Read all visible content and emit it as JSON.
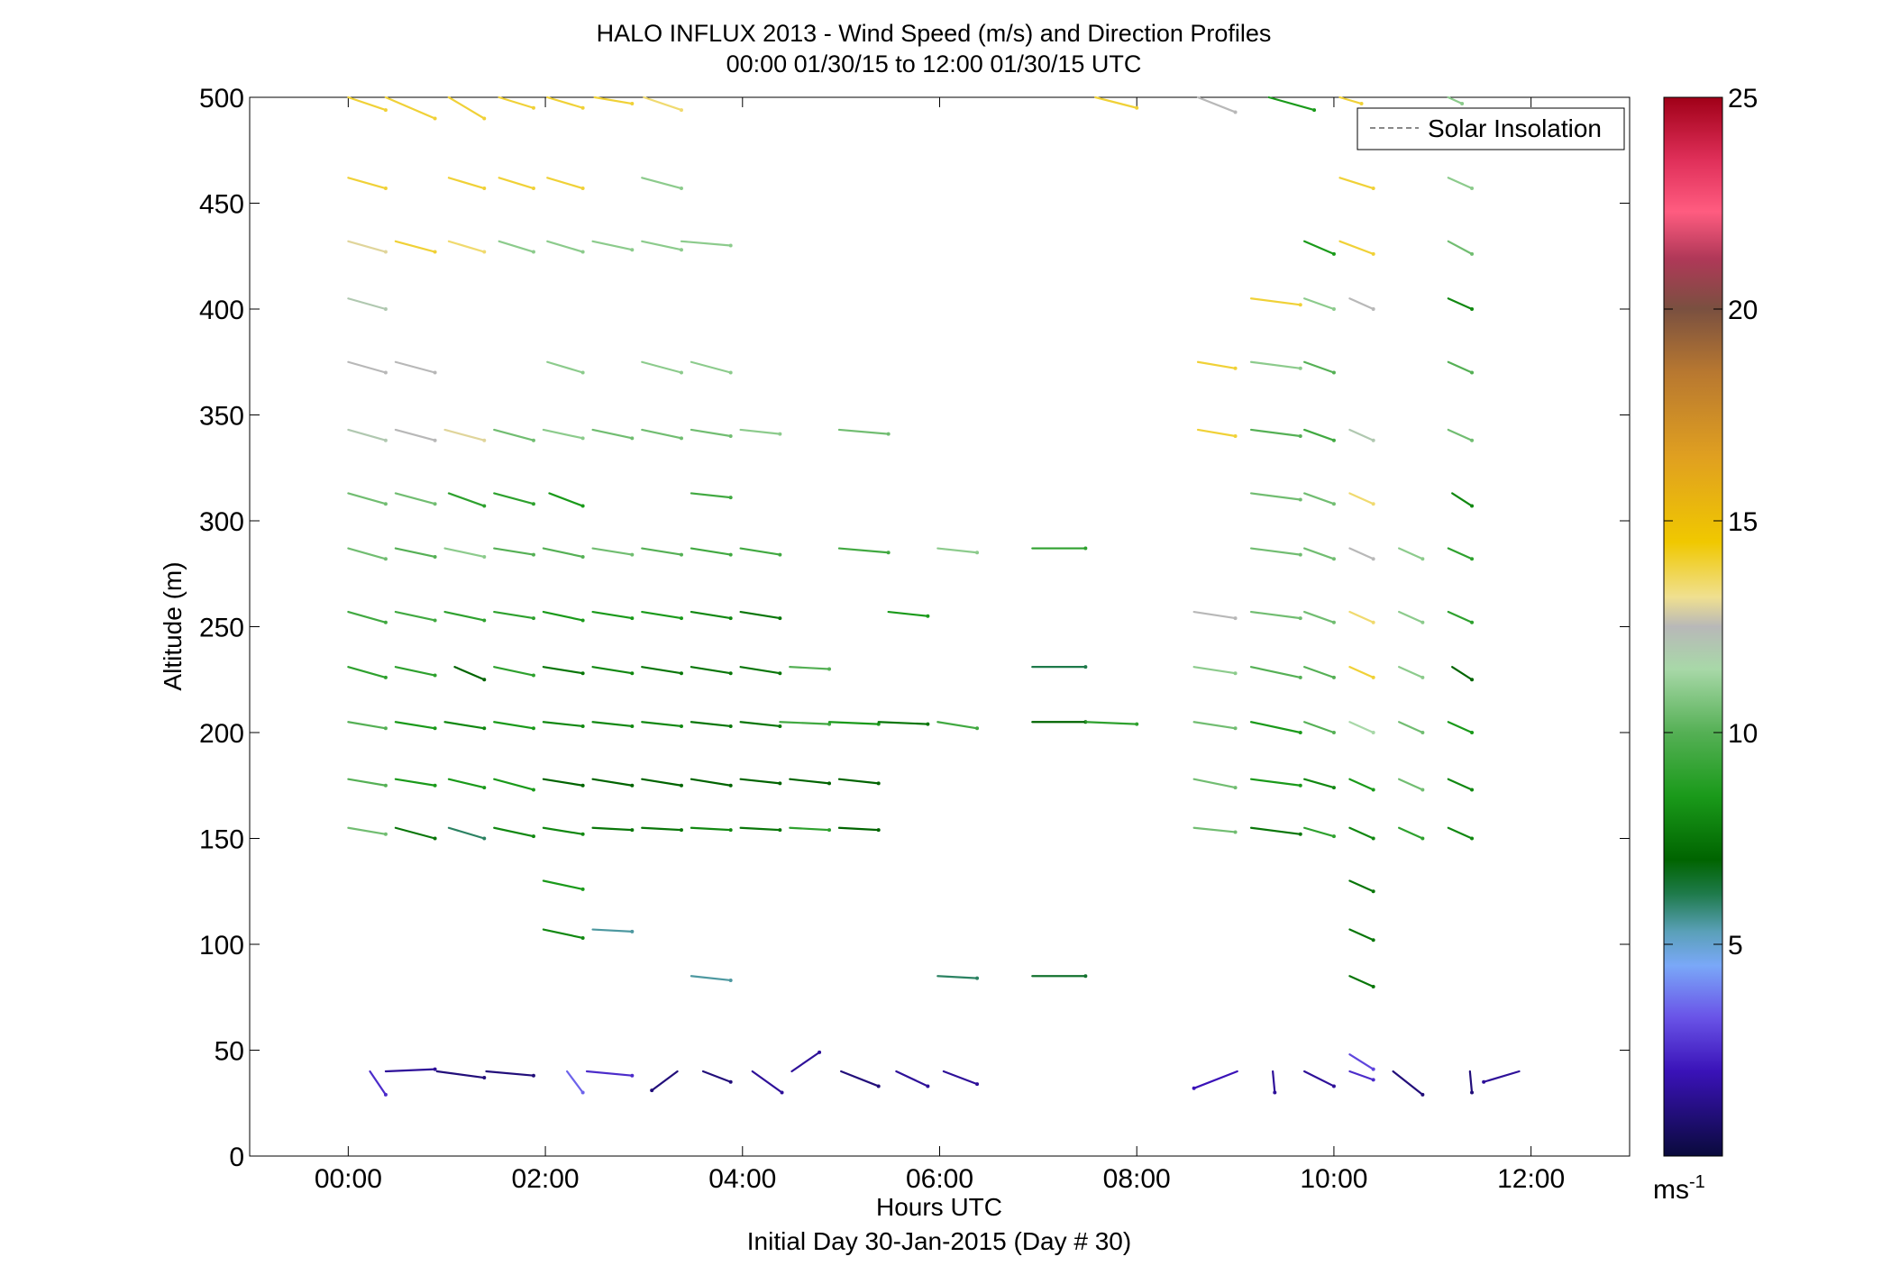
{
  "chart_data": {
    "type": "quiver",
    "title": "HALO INFLUX 2013 - Wind Speed (m/s) and Direction Profiles",
    "subtitle": "00:00 01/30/15 to 12:00 01/30/15  UTC",
    "xlabel": "Hours UTC",
    "xlabel2": "Initial Day 30-Jan-2015 (Day # 30)",
    "ylabel": "Altitude (m)",
    "xlim": [
      -1,
      13
    ],
    "ylim": [
      0,
      500
    ],
    "xticks": [
      {
        "value": 0,
        "label": "00:00"
      },
      {
        "value": 2,
        "label": "02:00"
      },
      {
        "value": 4,
        "label": "04:00"
      },
      {
        "value": 6,
        "label": "06:00"
      },
      {
        "value": 8,
        "label": "08:00"
      },
      {
        "value": 10,
        "label": "10:00"
      },
      {
        "value": 12,
        "label": "12:00"
      }
    ],
    "yticks": [
      0,
      50,
      100,
      150,
      200,
      250,
      300,
      350,
      400,
      450,
      500
    ],
    "legend": {
      "label": "Solar Insolation",
      "placement": "top-right",
      "line_color": "#888888",
      "line_style": "dashed"
    },
    "colorbar": {
      "range": [
        0,
        25
      ],
      "ticks": [
        5,
        10,
        15,
        20,
        25
      ],
      "unit_label": "ms",
      "unit_exponent": "-1",
      "colormap": [
        {
          "v": 0,
          "c": "#0a0a3c"
        },
        {
          "v": 2,
          "c": "#3a12b8"
        },
        {
          "v": 3.3,
          "c": "#6a55e8"
        },
        {
          "v": 4.5,
          "c": "#7aa8f8"
        },
        {
          "v": 5.3,
          "c": "#5aa0b8"
        },
        {
          "v": 6.2,
          "c": "#1e7a4a"
        },
        {
          "v": 7,
          "c": "#006400"
        },
        {
          "v": 8.5,
          "c": "#1a9a1a"
        },
        {
          "v": 10,
          "c": "#55b055"
        },
        {
          "v": 11.5,
          "c": "#a8d8a8"
        },
        {
          "v": 12.5,
          "c": "#b8b8b8"
        },
        {
          "v": 13.2,
          "c": "#f0e090"
        },
        {
          "v": 14.5,
          "c": "#f0c800"
        },
        {
          "v": 16.5,
          "c": "#e0a020"
        },
        {
          "v": 18.5,
          "c": "#b87830"
        },
        {
          "v": 20,
          "c": "#7a5040"
        },
        {
          "v": 21.2,
          "c": "#b03858"
        },
        {
          "v": 22.3,
          "c": "#ff5c80"
        },
        {
          "v": 23.5,
          "c": "#e0305a"
        },
        {
          "v": 25,
          "c": "#a00018"
        }
      ]
    },
    "series": [
      {
        "y": 500,
        "start": [
          0,
          0.38,
          1.02,
          1.53,
          2.02,
          2.5,
          3.0,
          7.58,
          8.62,
          9.34
        ],
        "end": [
          0.38,
          0.88,
          1.38,
          1.88,
          2.38,
          2.88,
          3.38,
          8.0,
          9.0,
          9.8
        ],
        "dy": [
          -6,
          -10,
          -10,
          -5,
          -5,
          -3,
          -6,
          -5,
          -7,
          -6
        ],
        "speed": [
          14,
          14,
          14,
          14,
          14,
          14,
          13.5,
          14,
          12.5,
          8.5
        ]
      },
      {
        "y": 500,
        "start": [
          10.06,
          11.16
        ],
        "end": [
          10.28,
          11.3
        ],
        "dy": [
          -3,
          -3
        ],
        "speed": [
          14,
          11
        ]
      },
      {
        "y": 462,
        "start": [
          0,
          1.02,
          1.53,
          2.02,
          2.98,
          10.06,
          11.16
        ],
        "end": [
          0.38,
          1.38,
          1.88,
          2.38,
          3.38,
          10.4,
          11.4
        ],
        "dy": [
          -5,
          -5,
          -5,
          -5,
          -5,
          -5,
          -5
        ],
        "speed": [
          14,
          14,
          14,
          14,
          11,
          14,
          11
        ]
      },
      {
        "y": 432,
        "start": [
          0,
          0.48,
          1.02,
          1.53,
          2.02,
          2.48,
          2.98,
          3.38,
          9.7,
          10.06,
          11.16
        ],
        "end": [
          0.38,
          0.88,
          1.38,
          1.88,
          2.38,
          2.88,
          3.38,
          3.88,
          10.0,
          10.4,
          11.4
        ],
        "dy": [
          -5,
          -5,
          -5,
          -5,
          -5,
          -4,
          -4,
          -2,
          -6,
          -6,
          -6
        ],
        "speed": [
          13,
          14,
          13.5,
          11,
          11,
          11,
          11,
          11,
          8.5,
          14,
          10.5
        ]
      },
      {
        "y": 405,
        "start": [
          0,
          9.16,
          9.7,
          10.16,
          11.16
        ],
        "end": [
          0.38,
          9.66,
          10.0,
          10.4,
          11.4
        ],
        "dy": [
          -5,
          -3,
          -5,
          -5,
          -5
        ],
        "speed": [
          12,
          14,
          11,
          12.5,
          8
        ]
      },
      {
        "y": 375,
        "start": [
          0,
          0.48,
          2.02,
          2.98,
          3.48,
          8.62,
          9.16,
          9.7,
          11.16
        ],
        "end": [
          0.38,
          0.88,
          2.38,
          3.38,
          3.88,
          9.0,
          9.66,
          10.0,
          11.4
        ],
        "dy": [
          -5,
          -5,
          -5,
          -5,
          -5,
          -3,
          -3,
          -5,
          -5
        ],
        "speed": [
          12.5,
          12.5,
          11,
          11,
          11,
          14,
          11,
          10,
          10
        ]
      },
      {
        "y": 343,
        "start": [
          0,
          0.48,
          0.98,
          1.48,
          1.98,
          2.48,
          2.98,
          3.48,
          3.98,
          4.98,
          8.62,
          9.16,
          9.7,
          10.16,
          11.16
        ],
        "end": [
          0.38,
          0.88,
          1.38,
          1.88,
          2.38,
          2.88,
          3.38,
          3.88,
          4.38,
          5.48,
          9.0,
          9.66,
          10.0,
          10.4,
          11.4
        ],
        "dy": [
          -5,
          -5,
          -5,
          -5,
          -4,
          -4,
          -4,
          -3,
          -2,
          -2,
          -3,
          -3,
          -5,
          -5,
          -5
        ],
        "speed": [
          12,
          12.5,
          13,
          10.5,
          11,
          10.5,
          10.5,
          10.5,
          11,
          10.5,
          14,
          10,
          9.5,
          12,
          10.5
        ]
      },
      {
        "y": 313,
        "start": [
          0,
          0.48,
          1.02,
          1.48,
          2.04,
          3.48,
          9.16,
          9.7,
          10.16,
          11.2
        ],
        "end": [
          0.38,
          0.88,
          1.38,
          1.88,
          2.38,
          3.88,
          9.66,
          10.0,
          10.4,
          11.4
        ],
        "dy": [
          -5,
          -5,
          -6,
          -5,
          -6,
          -2,
          -3,
          -5,
          -5,
          -6
        ],
        "speed": [
          10.5,
          10.5,
          9,
          9,
          8.5,
          9.5,
          10.5,
          10.5,
          13.5,
          8
        ]
      },
      {
        "y": 287,
        "start": [
          0,
          0.48,
          0.98,
          1.48,
          1.98,
          2.48,
          2.98,
          3.48,
          3.98,
          4.98,
          5.98,
          6.94,
          9.16,
          9.7,
          10.16,
          10.66,
          11.16
        ],
        "end": [
          0.38,
          0.88,
          1.38,
          1.88,
          2.38,
          2.88,
          3.38,
          3.88,
          4.38,
          5.48,
          6.38,
          7.48,
          9.66,
          10.0,
          10.4,
          10.9,
          11.4
        ],
        "dy": [
          -5,
          -4,
          -4,
          -3,
          -4,
          -3,
          -3,
          -3,
          -3,
          -2,
          -2,
          0,
          -3,
          -5,
          -5,
          -5,
          -5
        ],
        "speed": [
          10.5,
          10,
          11,
          10,
          10,
          10.5,
          10,
          9.5,
          9.5,
          9.5,
          11,
          9,
          10.5,
          10.5,
          12.5,
          11,
          9
        ]
      },
      {
        "y": 257,
        "start": [
          0,
          0.48,
          0.98,
          1.48,
          1.98,
          2.48,
          2.98,
          3.48,
          3.98,
          5.48,
          8.58,
          9.16,
          9.7,
          10.16,
          10.66,
          11.16
        ],
        "end": [
          0.38,
          0.88,
          1.38,
          1.88,
          2.38,
          2.88,
          3.38,
          3.88,
          4.38,
          5.88,
          9.0,
          9.66,
          10.0,
          10.4,
          10.9,
          11.4
        ],
        "dy": [
          -5,
          -4,
          -4,
          -3,
          -4,
          -3,
          -3,
          -3,
          -3,
          -2,
          -3,
          -3,
          -5,
          -5,
          -5,
          -5
        ],
        "speed": [
          9.5,
          9.5,
          9,
          9,
          8.5,
          8.5,
          8.5,
          8,
          7.5,
          8.5,
          12.5,
          10.5,
          10.5,
          13.5,
          11,
          9
        ]
      },
      {
        "y": 231,
        "start": [
          0,
          0.48,
          1.08,
          1.48,
          1.98,
          2.48,
          2.98,
          3.48,
          3.98,
          4.48,
          6.94,
          8.58,
          9.16,
          9.7,
          10.16,
          10.66,
          11.2
        ],
        "end": [
          0.38,
          0.88,
          1.38,
          1.88,
          2.38,
          2.88,
          3.38,
          3.88,
          4.38,
          4.88,
          7.48,
          9.0,
          9.66,
          10.0,
          10.4,
          10.9,
          11.4
        ],
        "dy": [
          -5,
          -4,
          -6,
          -4,
          -3,
          -3,
          -3,
          -3,
          -3,
          -1,
          0,
          -3,
          -5,
          -5,
          -5,
          -5,
          -6
        ],
        "speed": [
          9,
          9,
          7,
          9,
          7.5,
          8,
          7.5,
          7.5,
          7.5,
          10,
          6.2,
          11,
          10,
          10,
          14,
          11,
          7
        ]
      },
      {
        "y": 205,
        "start": [
          0,
          0.48,
          0.98,
          1.48,
          1.98,
          2.48,
          2.98,
          3.48,
          3.98,
          4.38,
          4.88,
          5.38,
          5.98,
          6.94,
          7.48,
          8.58,
          9.16,
          9.7,
          10.16,
          10.66,
          11.16
        ],
        "end": [
          0.38,
          0.88,
          1.38,
          1.88,
          2.38,
          2.88,
          3.38,
          3.88,
          4.38,
          4.88,
          5.38,
          5.88,
          6.38,
          7.48,
          8.0,
          9.0,
          9.66,
          10.0,
          10.4,
          10.9,
          11.4
        ],
        "dy": [
          -3,
          -3,
          -3,
          -3,
          -2,
          -2,
          -2,
          -2,
          -2,
          -1,
          -1,
          -1,
          -3,
          0,
          -1,
          -3,
          -5,
          -5,
          -5,
          -5,
          -5
        ],
        "speed": [
          10,
          8.5,
          8,
          8.5,
          8,
          8,
          8,
          7.5,
          7.5,
          9.5,
          8.5,
          7.5,
          9.5,
          7,
          9,
          10.5,
          8.5,
          10,
          11.5,
          10.5,
          8.5
        ]
      },
      {
        "y": 178,
        "start": [
          0,
          0.48,
          1.02,
          1.48,
          1.98,
          2.48,
          2.98,
          3.48,
          3.98,
          4.48,
          4.98,
          8.58,
          9.16,
          9.7,
          10.16,
          10.66,
          11.16
        ],
        "end": [
          0.38,
          0.88,
          1.38,
          1.88,
          2.38,
          2.88,
          3.38,
          3.88,
          4.38,
          4.88,
          5.38,
          9.0,
          9.66,
          10.0,
          10.4,
          10.9,
          11.4
        ],
        "dy": [
          -3,
          -3,
          -4,
          -5,
          -3,
          -3,
          -3,
          -3,
          -2,
          -2,
          -2,
          -4,
          -3,
          -4,
          -5,
          -5,
          -5
        ],
        "speed": [
          10,
          8.5,
          8.5,
          8.5,
          7,
          7,
          7,
          7,
          7,
          7,
          7,
          10.5,
          8.5,
          8,
          8.5,
          10.5,
          8
        ]
      },
      {
        "y": 155,
        "start": [
          0,
          0.48,
          1.02,
          1.48,
          1.98,
          2.48,
          2.98,
          3.48,
          3.98,
          4.48,
          4.98,
          8.58,
          9.16,
          9.7,
          10.16,
          10.66,
          11.16
        ],
        "end": [
          0.38,
          0.88,
          1.38,
          1.88,
          2.38,
          2.88,
          3.38,
          3.88,
          4.38,
          4.88,
          5.38,
          9.0,
          9.66,
          10.0,
          10.4,
          10.9,
          11.4
        ],
        "dy": [
          -3,
          -5,
          -5,
          -4,
          -3,
          -1,
          -1,
          -1,
          -1,
          -1,
          -1,
          -2,
          -3,
          -4,
          -5,
          -5,
          -5
        ],
        "speed": [
          10.5,
          7.5,
          6,
          8,
          8,
          7.5,
          7.5,
          8,
          7.5,
          9,
          7,
          10.5,
          7.5,
          9,
          8,
          9,
          8
        ]
      },
      {
        "y": 130,
        "start": [
          1.98,
          10.16
        ],
        "end": [
          2.38,
          10.4
        ],
        "dy": [
          -4,
          -5
        ],
        "speed": [
          8.5,
          7.5
        ]
      },
      {
        "y": 107,
        "start": [
          1.98,
          2.48,
          10.16
        ],
        "end": [
          2.38,
          2.88,
          10.4
        ],
        "dy": [
          -4,
          -1,
          -5
        ],
        "speed": [
          8,
          5.5,
          7.5
        ]
      },
      {
        "y": 85,
        "start": [
          3.48,
          5.98,
          6.94,
          10.16
        ],
        "end": [
          3.88,
          6.38,
          7.48,
          10.4
        ],
        "dy": [
          -2,
          -1,
          0,
          -5
        ],
        "speed": [
          5.5,
          6,
          6.5,
          7.5
        ]
      },
      {
        "y": 40,
        "start": [
          0.22,
          0.38,
          0.9,
          1.4,
          2.22,
          2.42,
          3.34,
          3.6,
          4.1,
          4.5,
          5.0,
          5.56,
          6.04,
          9.02,
          9.38,
          9.7,
          10.16,
          10.6,
          11.38,
          11.88
        ],
        "end": [
          0.38,
          0.88,
          1.38,
          1.88,
          2.38,
          2.88,
          3.08,
          3.88,
          4.4,
          4.78,
          5.38,
          5.88,
          6.38,
          8.58,
          9.4,
          10.0,
          10.4,
          10.9,
          11.4,
          11.52
        ],
        "dy": [
          -11,
          1,
          -3,
          -2,
          -10,
          -2,
          -9,
          -5,
          -10,
          9,
          -7,
          -7,
          -6,
          -8,
          -10,
          -7,
          -4,
          -11,
          -10,
          -5
        ],
        "speed": [
          2.5,
          1.5,
          1,
          1,
          3.5,
          2.5,
          1,
          1,
          1.5,
          1.5,
          1,
          1.5,
          1.5,
          2,
          1.5,
          1.5,
          2.5,
          1,
          1,
          1.5
        ]
      },
      {
        "y": 48,
        "start": [
          10.16
        ],
        "end": [
          10.4
        ],
        "dy": [
          -7
        ],
        "speed": [
          3
        ]
      }
    ]
  }
}
